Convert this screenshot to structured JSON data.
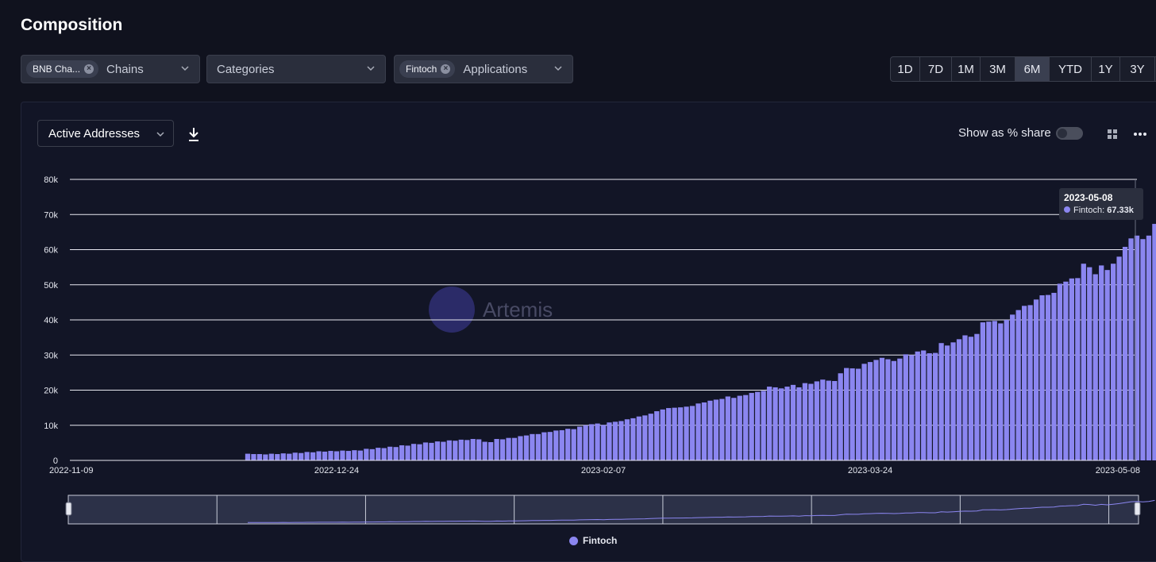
{
  "page": {
    "title": "Composition"
  },
  "filters": {
    "chains": {
      "chip": "BNB Cha...",
      "label": "Chains"
    },
    "categories": {
      "label": "Categories"
    },
    "applications": {
      "chip": "Fintoch",
      "label": "Applications"
    }
  },
  "ranges": [
    "1D",
    "7D",
    "1M",
    "3M",
    "6M",
    "YTD",
    "1Y",
    "3Y"
  ],
  "active_range": "6M",
  "toolbar": {
    "metric": "Active Addresses",
    "share_label": "Show as % share",
    "share_on": false
  },
  "watermark": "Artemis",
  "tooltip": {
    "date": "2023-05-08",
    "series": "Fintoch:",
    "value": "67.33k"
  },
  "colors": {
    "series": "#8b86f0",
    "background": "#10121e",
    "grid": "#e8e8f0"
  },
  "chart_data": {
    "type": "bar",
    "title": "",
    "xlabel": "",
    "ylabel": "",
    "ylim": [
      0,
      80000
    ],
    "yticks": [
      "0",
      "10k",
      "20k",
      "30k",
      "40k",
      "50k",
      "60k",
      "70k",
      "80k"
    ],
    "xticks": [
      "2022-11-09",
      "2022-12-24",
      "2023-02-07",
      "2023-03-24",
      "2023-05-08"
    ],
    "x_range": [
      "2022-11-09",
      "2023-05-08"
    ],
    "data_start": "2022-12-09",
    "series": [
      {
        "name": "Fintoch",
        "values": [
          1900,
          1800,
          1800,
          1700,
          1900,
          1800,
          2000,
          1900,
          2200,
          2100,
          2400,
          2300,
          2600,
          2500,
          2700,
          2600,
          2800,
          2700,
          2900,
          2800,
          3300,
          3200,
          3600,
          3500,
          3900,
          3800,
          4300,
          4200,
          4700,
          4600,
          5100,
          5000,
          5400,
          5300,
          5700,
          5600,
          5900,
          5800,
          6100,
          6000,
          5300,
          5200,
          6100,
          6000,
          6400,
          6400,
          6900,
          7100,
          7500,
          7500,
          8000,
          8100,
          8500,
          8600,
          9000,
          8900,
          9600,
          10000,
          10300,
          10500,
          10100,
          10800,
          11000,
          11200,
          11700,
          12000,
          12500,
          12800,
          13300,
          14000,
          14500,
          14900,
          15000,
          15100,
          15300,
          15500,
          16200,
          16500,
          17000,
          17300,
          17500,
          18200,
          17800,
          18400,
          18600,
          19200,
          19500,
          19800,
          21000,
          20800,
          20500,
          21000,
          21500,
          20800,
          22000,
          21800,
          22500,
          23000,
          22700,
          22600,
          24800,
          26300,
          26200,
          26100,
          27500,
          28000,
          28600,
          29200,
          28800,
          28300,
          29000,
          30200,
          30000,
          31000,
          31300,
          30500,
          30600,
          33400,
          32700,
          33600,
          34500,
          35600,
          35200,
          36000,
          39300,
          39500,
          39700,
          39000,
          40000,
          41500,
          42800,
          44000,
          44200,
          45800,
          47000,
          47100,
          47700,
          50300,
          50900,
          51800,
          51900,
          56000,
          55000,
          53000,
          55500,
          54200,
          56000,
          58000,
          60800,
          63200,
          64000,
          63000,
          64000,
          67330
        ]
      }
    ]
  }
}
